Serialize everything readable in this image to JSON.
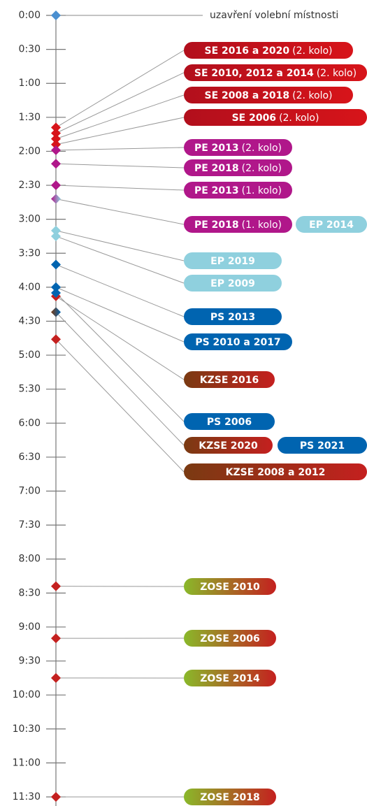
{
  "axis": {
    "ticks": [
      {
        "value": 0,
        "label": "0:00"
      },
      {
        "value": 30,
        "label": "0:30"
      },
      {
        "value": 60,
        "label": "1:00"
      },
      {
        "value": 90,
        "label": "1:30"
      },
      {
        "value": 120,
        "label": "2:00"
      },
      {
        "value": 150,
        "label": "2:30"
      },
      {
        "value": 180,
        "label": "3:00"
      },
      {
        "value": 210,
        "label": "3:30"
      },
      {
        "value": 240,
        "label": "4:00"
      },
      {
        "value": 270,
        "label": "4:30"
      },
      {
        "value": 300,
        "label": "5:00"
      },
      {
        "value": 330,
        "label": "5:30"
      },
      {
        "value": 360,
        "label": "6:00"
      },
      {
        "value": 390,
        "label": "6:30"
      },
      {
        "value": 420,
        "label": "7:00"
      },
      {
        "value": 450,
        "label": "7:30"
      },
      {
        "value": 480,
        "label": "8:00"
      },
      {
        "value": 510,
        "label": "8:30"
      },
      {
        "value": 540,
        "label": "9:00"
      },
      {
        "value": 570,
        "label": "9:30"
      },
      {
        "value": 600,
        "label": "10:00"
      },
      {
        "value": 630,
        "label": "10:30"
      },
      {
        "value": 660,
        "label": "11:00"
      },
      {
        "value": 690,
        "label": "11:30"
      }
    ]
  },
  "start": {
    "time": 0,
    "label": "uzavření volební místnosti",
    "color": "#4a8fd0"
  },
  "rows": [
    {
      "time": 99,
      "pills": [
        {
          "bold": "SE 2016 a 2020",
          "rest": "(2. kolo)",
          "color": [
            "#b20f1c",
            "#d7141a"
          ]
        }
      ]
    },
    {
      "time": 104,
      "pills": [
        {
          "bold": "SE 2010, 2012 a 2014",
          "rest": "(2. kolo)",
          "color": [
            "#b20f1c",
            "#d7141a"
          ]
        }
      ]
    },
    {
      "time": 109,
      "pills": [
        {
          "bold": "SE 2008 a 2018",
          "rest": "(2. kolo)",
          "color": [
            "#b20f1c",
            "#d7141a"
          ]
        }
      ]
    },
    {
      "time": 114,
      "pills": [
        {
          "bold": "SE 2006",
          "rest": "(2. kolo)",
          "color": [
            "#b20f1c",
            "#d7141a"
          ]
        }
      ]
    },
    {
      "time": 119,
      "pills": [
        {
          "bold": "PE 2013",
          "rest": "(2. kolo)",
          "color": [
            "#b0178a",
            "#b0178a"
          ]
        }
      ]
    },
    {
      "time": 131,
      "pills": [
        {
          "bold": "PE 2018",
          "rest": "(2. kolo)",
          "color": [
            "#b0178a",
            "#b0178a"
          ]
        }
      ]
    },
    {
      "time": 150,
      "pills": [
        {
          "bold": "PE 2013",
          "rest": "(1. kolo)",
          "color": [
            "#b0178a",
            "#b0178a"
          ]
        }
      ]
    },
    {
      "time": 162,
      "pills": [
        {
          "bold": "PE 2018",
          "rest": "(1. kolo)",
          "color": [
            "#b0178a",
            "#b0178a"
          ]
        },
        {
          "bold": "EP 2014",
          "color": [
            "#8fd0de",
            "#8fd0de"
          ]
        }
      ]
    },
    {
      "time": 190,
      "pills": [
        {
          "bold": "EP 2019",
          "color": [
            "#8fd0de",
            "#8fd0de"
          ]
        }
      ]
    },
    {
      "time": 195,
      "pills": [
        {
          "bold": "EP 2009",
          "color": [
            "#8fd0de",
            "#8fd0de"
          ]
        }
      ]
    },
    {
      "time": 220,
      "pills": [
        {
          "bold": "PS 2013",
          "color": [
            "#0064b0",
            "#0064b0"
          ]
        }
      ]
    },
    {
      "time": 240,
      "pills": [
        {
          "bold": "PS 2010 a 2017",
          "color": [
            "#0064b0",
            "#0064b0"
          ]
        }
      ]
    },
    {
      "time": 248,
      "pills": [
        {
          "bold": "KZSE 2016",
          "color": [
            "#7a3a12",
            "#c4201f"
          ]
        }
      ]
    },
    {
      "time": 245,
      "pills": [
        {
          "bold": "PS 2006",
          "color": [
            "#0064b0",
            "#0064b0"
          ]
        }
      ]
    },
    {
      "time": 262,
      "pills": [
        {
          "bold": "KZSE 2020",
          "color": [
            "#7a3a12",
            "#c4201f"
          ]
        },
        {
          "bold": "PS 2021",
          "color": [
            "#0064b0",
            "#0064b0"
          ]
        }
      ]
    },
    {
      "time": 286,
      "pills": [
        {
          "bold": "KZSE 2008 a 2012",
          "color": [
            "#7a3a12",
            "#c4201f"
          ]
        }
      ]
    },
    {
      "time": 504,
      "pills": [
        {
          "bold": "ZOSE 2010",
          "color": [
            "#8ab82a",
            "#c4201f"
          ]
        }
      ]
    },
    {
      "time": 550,
      "pills": [
        {
          "bold": "ZOSE 2006",
          "color": [
            "#8ab82a",
            "#c4201f"
          ]
        }
      ]
    },
    {
      "time": 585,
      "pills": [
        {
          "bold": "ZOSE 2014",
          "color": [
            "#8ab82a",
            "#c4201f"
          ]
        }
      ]
    },
    {
      "time": 690,
      "pills": [
        {
          "bold": "ZOSE 2018",
          "color": [
            "#8ab82a",
            "#c4201f"
          ]
        }
      ]
    }
  ]
}
